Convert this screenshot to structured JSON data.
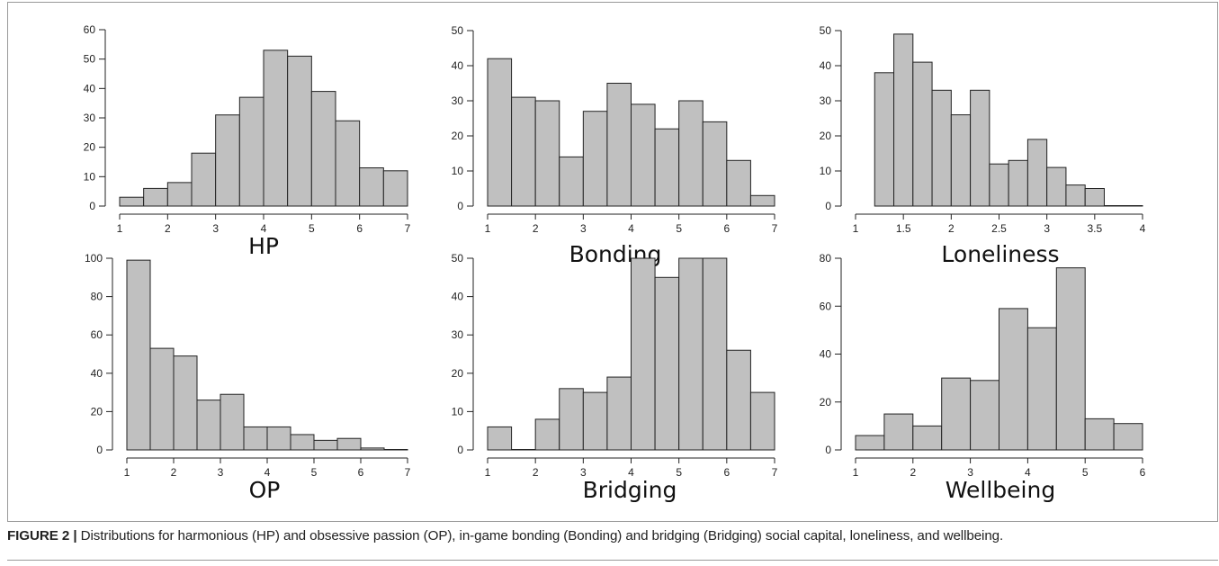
{
  "caption": {
    "label": "FIGURE 2 |",
    "text": " Distributions for harmonious (HP) and obsessive passion (OP), in-game bonding (Bonding) and bridging (Bridging) social capital, loneliness, and wellbeing."
  },
  "colors": {
    "bar_fill": "#c0c0c0",
    "bar_stroke": "#222222",
    "axis": "#222222",
    "frame": "#999999"
  },
  "chart_data": [
    {
      "type": "bar",
      "title": "HP",
      "xlabel": "HP",
      "ylabel": "",
      "bin_edges": [
        1,
        1.5,
        2,
        2.5,
        3,
        3.5,
        4,
        4.5,
        5,
        5.5,
        6,
        6.5,
        7
      ],
      "values": [
        3,
        6,
        8,
        18,
        31,
        37,
        53,
        51,
        39,
        29,
        13,
        12
      ],
      "xlim": [
        1,
        7
      ],
      "ylim": [
        0,
        60
      ],
      "xticks": [
        1,
        2,
        3,
        4,
        5,
        6,
        7
      ],
      "yticks": [
        0,
        10,
        20,
        30,
        40,
        50,
        60
      ],
      "xtick_labels": [
        "1",
        "2",
        "3",
        "4",
        "5",
        "6",
        "7"
      ],
      "ytick_labels": [
        "0",
        "10",
        "20",
        "30",
        "40",
        "50",
        "60"
      ]
    },
    {
      "type": "bar",
      "title": "Bonding",
      "xlabel": "Bonding",
      "ylabel": "",
      "bin_edges": [
        1,
        1.5,
        2,
        2.5,
        3,
        3.5,
        4,
        4.5,
        5,
        5.5,
        6,
        6.5,
        7
      ],
      "values": [
        42,
        31,
        30,
        14,
        27,
        35,
        29,
        22,
        30,
        24,
        13,
        3
      ],
      "xlim": [
        1,
        7
      ],
      "ylim": [
        0,
        50
      ],
      "xticks": [
        1,
        2,
        3,
        4,
        5,
        6,
        7
      ],
      "yticks": [
        0,
        10,
        20,
        30,
        40,
        50
      ],
      "xtick_labels": [
        "1",
        "2",
        "3",
        "4",
        "5",
        "6",
        "7"
      ],
      "ytick_labels": [
        "0",
        "10",
        "20",
        "30",
        "40",
        "50"
      ]
    },
    {
      "type": "bar",
      "title": "Loneliness",
      "xlabel": "Loneliness",
      "ylabel": "",
      "bin_edges": [
        1.2,
        1.4,
        1.6,
        1.8,
        2.0,
        2.2,
        2.4,
        2.6,
        2.8,
        3.0,
        3.2,
        3.4,
        3.6,
        3.8,
        4.0
      ],
      "values": [
        38,
        49,
        41,
        33,
        26,
        33,
        12,
        13,
        19,
        11,
        6,
        5,
        0,
        0
      ],
      "xlim": [
        1,
        4
      ],
      "ylim": [
        0,
        50
      ],
      "xticks": [
        1,
        1.5,
        2,
        2.5,
        3,
        3.5,
        4
      ],
      "yticks": [
        0,
        10,
        20,
        30,
        40,
        50
      ],
      "xtick_labels": [
        "1",
        "1.5",
        "2",
        "2.5",
        "3",
        "3.5",
        "4"
      ],
      "ytick_labels": [
        "0",
        "10",
        "20",
        "30",
        "40",
        "50"
      ]
    },
    {
      "type": "bar",
      "title": "OP",
      "xlabel": "OP",
      "ylabel": "",
      "bin_edges": [
        1,
        1.5,
        2,
        2.5,
        3,
        3.5,
        4,
        4.5,
        5,
        5.5,
        6,
        6.5,
        7
      ],
      "values": [
        99,
        53,
        49,
        26,
        29,
        12,
        12,
        8,
        5,
        6,
        1,
        0
      ],
      "xlim": [
        1,
        7
      ],
      "ylim": [
        0,
        100
      ],
      "xticks": [
        1,
        2,
        3,
        4,
        5,
        6,
        7
      ],
      "yticks": [
        0,
        20,
        40,
        60,
        80,
        100
      ],
      "xtick_labels": [
        "1",
        "2",
        "3",
        "4",
        "5",
        "6",
        "7"
      ],
      "ytick_labels": [
        "0",
        "20",
        "40",
        "60",
        "80",
        "100"
      ]
    },
    {
      "type": "bar",
      "title": "Bridging",
      "xlabel": "Bridging",
      "ylabel": "",
      "bin_edges": [
        1,
        1.5,
        2,
        2.5,
        3,
        3.5,
        4,
        4.5,
        5,
        5.5,
        6,
        6.5,
        7
      ],
      "values": [
        6,
        0,
        8,
        16,
        15,
        19,
        50,
        45,
        50,
        50,
        26,
        15
      ],
      "xlim": [
        1,
        7
      ],
      "ylim": [
        0,
        50
      ],
      "xticks": [
        1,
        2,
        3,
        4,
        5,
        6,
        7
      ],
      "yticks": [
        0,
        10,
        20,
        30,
        40,
        50
      ],
      "xtick_labels": [
        "1",
        "2",
        "3",
        "4",
        "5",
        "6",
        "7"
      ],
      "ytick_labels": [
        "0",
        "10",
        "20",
        "30",
        "40",
        "50"
      ]
    },
    {
      "type": "bar",
      "title": "Wellbeing",
      "xlabel": "Wellbeing",
      "ylabel": "",
      "bin_edges": [
        1,
        1.5,
        2,
        2.5,
        3,
        3.5,
        4,
        4.5,
        5,
        5.5,
        6
      ],
      "values": [
        6,
        15,
        10,
        30,
        29,
        59,
        51,
        76,
        13,
        11
      ],
      "xlim": [
        1,
        6
      ],
      "ylim": [
        0,
        80
      ],
      "xticks": [
        1,
        2,
        3,
        4,
        5,
        6
      ],
      "yticks": [
        0,
        20,
        40,
        60,
        80
      ],
      "xtick_labels": [
        "1",
        "2",
        "3",
        "4",
        "5",
        "6"
      ],
      "ytick_labels": [
        "0",
        "20",
        "40",
        "60",
        "80"
      ]
    }
  ]
}
